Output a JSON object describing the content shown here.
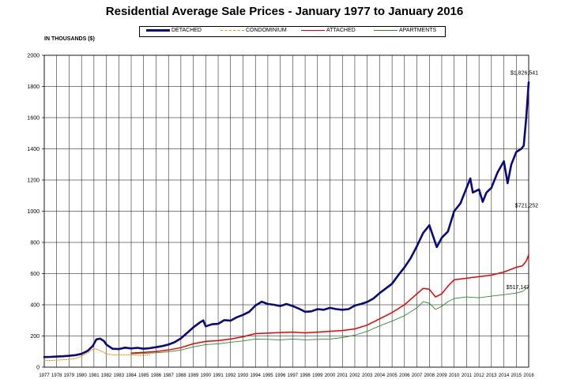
{
  "chart_data": {
    "type": "line",
    "title": "Residential Average Sale Prices  -  January 1977 to January 2016",
    "ylabel": "IN THOUSANDS ($)",
    "xlabel": "",
    "ylim": [
      0,
      2000
    ],
    "y_ticks": [
      "0",
      "200",
      "400",
      "600",
      "800",
      "1000",
      "1200",
      "1400",
      "1600",
      "1800",
      "2000"
    ],
    "x_tick_labels": [
      "1977",
      "1978",
      "1979",
      "1980",
      "1981",
      "1982",
      "1983",
      "1984",
      "1985",
      "1986",
      "1987",
      "1988",
      "1989",
      "1990",
      "1991",
      "1992",
      "1993",
      "1994",
      "1995",
      "1996",
      "1997",
      "1998",
      "1999",
      "2000",
      "2001",
      "2002",
      "2003",
      "2004",
      "2005",
      "2006",
      "2007",
      "2008",
      "2009",
      "2010",
      "2011",
      "2012",
      "2013",
      "2014",
      "2015",
      "2016"
    ],
    "grid": true,
    "legend_position": "top-center",
    "series": [
      {
        "name": "DETACHED",
        "color": "#0a0a7a",
        "style": "solid-thick",
        "points": [
          [
            1977.0,
            65
          ],
          [
            1977.5,
            66
          ],
          [
            1978.0,
            68
          ],
          [
            1978.5,
            70
          ],
          [
            1979.0,
            73
          ],
          [
            1979.5,
            77
          ],
          [
            1980.0,
            85
          ],
          [
            1980.5,
            105
          ],
          [
            1980.9,
            135
          ],
          [
            1981.2,
            178
          ],
          [
            1981.5,
            183
          ],
          [
            1981.8,
            168
          ],
          [
            1982.0,
            145
          ],
          [
            1982.5,
            118
          ],
          [
            1983.0,
            116
          ],
          [
            1983.5,
            125
          ],
          [
            1984.0,
            120
          ],
          [
            1984.5,
            124
          ],
          [
            1985.0,
            118
          ],
          [
            1985.5,
            122
          ],
          [
            1986.0,
            128
          ],
          [
            1986.5,
            135
          ],
          [
            1987.0,
            145
          ],
          [
            1987.5,
            160
          ],
          [
            1988.0,
            185
          ],
          [
            1988.5,
            220
          ],
          [
            1989.0,
            255
          ],
          [
            1989.5,
            285
          ],
          [
            1989.8,
            300
          ],
          [
            1990.0,
            262
          ],
          [
            1990.5,
            275
          ],
          [
            1991.0,
            278
          ],
          [
            1991.5,
            302
          ],
          [
            1992.0,
            298
          ],
          [
            1992.5,
            320
          ],
          [
            1993.0,
            335
          ],
          [
            1993.5,
            355
          ],
          [
            1994.0,
            395
          ],
          [
            1994.5,
            420
          ],
          [
            1995.0,
            405
          ],
          [
            1995.5,
            400
          ],
          [
            1996.0,
            392
          ],
          [
            1996.5,
            405
          ],
          [
            1997.0,
            392
          ],
          [
            1997.5,
            375
          ],
          [
            1998.0,
            355
          ],
          [
            1998.5,
            358
          ],
          [
            1999.0,
            372
          ],
          [
            1999.5,
            368
          ],
          [
            2000.0,
            380
          ],
          [
            2000.5,
            372
          ],
          [
            2001.0,
            368
          ],
          [
            2001.5,
            372
          ],
          [
            2002.0,
            395
          ],
          [
            2002.5,
            405
          ],
          [
            2003.0,
            418
          ],
          [
            2003.5,
            440
          ],
          [
            2004.0,
            475
          ],
          [
            2004.5,
            505
          ],
          [
            2005.0,
            535
          ],
          [
            2005.5,
            590
          ],
          [
            2006.0,
            640
          ],
          [
            2006.5,
            700
          ],
          [
            2007.0,
            775
          ],
          [
            2007.5,
            860
          ],
          [
            2008.0,
            910
          ],
          [
            2008.3,
            840
          ],
          [
            2008.6,
            770
          ],
          [
            2009.0,
            830
          ],
          [
            2009.5,
            870
          ],
          [
            2010.0,
            1000
          ],
          [
            2010.5,
            1050
          ],
          [
            2011.0,
            1150
          ],
          [
            2011.3,
            1210
          ],
          [
            2011.5,
            1120
          ],
          [
            2012.0,
            1140
          ],
          [
            2012.3,
            1060
          ],
          [
            2012.6,
            1120
          ],
          [
            2013.0,
            1150
          ],
          [
            2013.5,
            1250
          ],
          [
            2014.0,
            1320
          ],
          [
            2014.3,
            1180
          ],
          [
            2014.6,
            1300
          ],
          [
            2015.0,
            1380
          ],
          [
            2015.4,
            1400
          ],
          [
            2015.6,
            1420
          ],
          [
            2015.8,
            1600
          ],
          [
            2016.0,
            1826.541
          ]
        ]
      },
      {
        "name": "CONDOMINIUM",
        "color": "#f08a00",
        "style": "dotted",
        "points": [
          [
            1977.0,
            42
          ],
          [
            1977.5,
            43
          ],
          [
            1978.0,
            45
          ],
          [
            1978.5,
            47
          ],
          [
            1979.0,
            50
          ],
          [
            1979.5,
            55
          ],
          [
            1980.0,
            70
          ],
          [
            1980.5,
            92
          ],
          [
            1981.0,
            120
          ],
          [
            1981.4,
            110
          ],
          [
            1981.8,
            95
          ],
          [
            1982.0,
            85
          ],
          [
            1982.5,
            80
          ],
          [
            1983.0,
            78
          ],
          [
            1983.5,
            80
          ],
          [
            1984.0,
            78
          ],
          [
            1984.5,
            76
          ],
          [
            1985.0,
            76
          ],
          [
            1985.5,
            78
          ]
        ]
      },
      {
        "name": "ATTACHED",
        "color": "#ee0000",
        "style": "solid",
        "points": [
          [
            1984.0,
            90
          ],
          [
            1985.0,
            95
          ],
          [
            1986.0,
            100
          ],
          [
            1987.0,
            110
          ],
          [
            1988.0,
            125
          ],
          [
            1989.0,
            150
          ],
          [
            1990.0,
            165
          ],
          [
            1991.0,
            170
          ],
          [
            1992.0,
            180
          ],
          [
            1993.0,
            195
          ],
          [
            1994.0,
            215
          ],
          [
            1995.0,
            218
          ],
          [
            1996.0,
            222
          ],
          [
            1997.0,
            225
          ],
          [
            1998.0,
            220
          ],
          [
            1999.0,
            225
          ],
          [
            2000.0,
            230
          ],
          [
            2001.0,
            235
          ],
          [
            2002.0,
            245
          ],
          [
            2003.0,
            270
          ],
          [
            2004.0,
            310
          ],
          [
            2005.0,
            350
          ],
          [
            2006.0,
            400
          ],
          [
            2007.0,
            470
          ],
          [
            2007.5,
            505
          ],
          [
            2008.0,
            500
          ],
          [
            2008.5,
            450
          ],
          [
            2009.0,
            470
          ],
          [
            2009.5,
            520
          ],
          [
            2010.0,
            560
          ],
          [
            2011.0,
            570
          ],
          [
            2012.0,
            580
          ],
          [
            2013.0,
            590
          ],
          [
            2014.0,
            610
          ],
          [
            2015.0,
            640
          ],
          [
            2015.5,
            650
          ],
          [
            2015.8,
            680
          ],
          [
            2016.0,
            721.252
          ]
        ]
      },
      {
        "name": "APARTMENTS",
        "color": "#2a8c2a",
        "style": "solid-thin",
        "points": [
          [
            1984.0,
            85
          ],
          [
            1985.0,
            88
          ],
          [
            1986.0,
            92
          ],
          [
            1987.0,
            98
          ],
          [
            1988.0,
            110
          ],
          [
            1989.0,
            130
          ],
          [
            1990.0,
            145
          ],
          [
            1991.0,
            150
          ],
          [
            1992.0,
            160
          ],
          [
            1993.0,
            168
          ],
          [
            1994.0,
            180
          ],
          [
            1995.0,
            178
          ],
          [
            1996.0,
            175
          ],
          [
            1997.0,
            180
          ],
          [
            1998.0,
            175
          ],
          [
            1999.0,
            178
          ],
          [
            2000.0,
            180
          ],
          [
            2001.0,
            190
          ],
          [
            2002.0,
            205
          ],
          [
            2003.0,
            230
          ],
          [
            2004.0,
            265
          ],
          [
            2005.0,
            295
          ],
          [
            2006.0,
            330
          ],
          [
            2007.0,
            380
          ],
          [
            2007.5,
            420
          ],
          [
            2008.0,
            410
          ],
          [
            2008.5,
            370
          ],
          [
            2009.0,
            390
          ],
          [
            2009.5,
            420
          ],
          [
            2010.0,
            440
          ],
          [
            2011.0,
            450
          ],
          [
            2012.0,
            445
          ],
          [
            2013.0,
            455
          ],
          [
            2014.0,
            465
          ],
          [
            2015.0,
            475
          ],
          [
            2015.5,
            485
          ],
          [
            2016.0,
            517.147
          ]
        ]
      }
    ],
    "annotations": [
      {
        "series": "DETACHED",
        "text": "$1,826,541"
      },
      {
        "series": "ATTACHED",
        "text": "$721,252"
      },
      {
        "series": "APARTMENTS",
        "text": "$517,147"
      }
    ]
  }
}
